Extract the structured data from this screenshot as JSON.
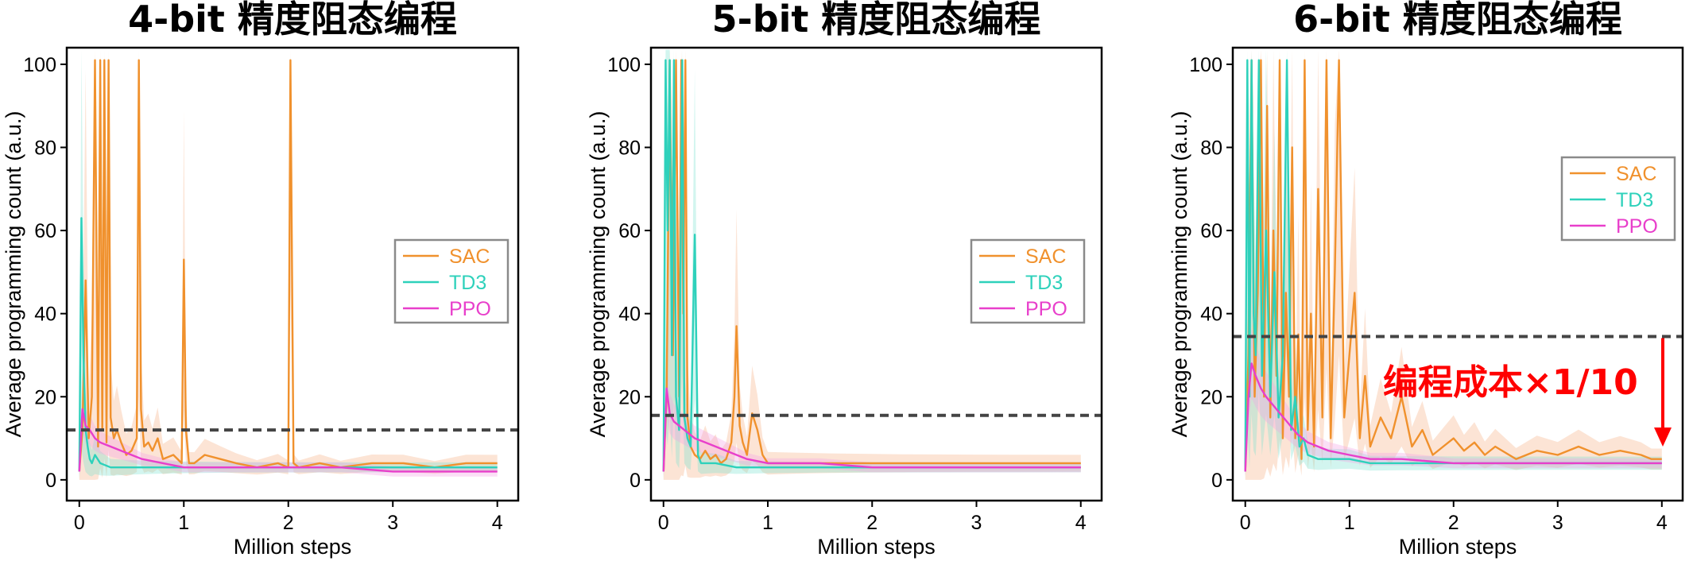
{
  "colors": {
    "SAC": "#f0912d",
    "TD3": "#2ed1bb",
    "PPO": "#e83fcb",
    "SAC_band": "#f6b186",
    "TD3_band": "#7fe3d2",
    "PPO_band": "#f3a3e6",
    "threshold": "#444444",
    "annotation": "#ff0000"
  },
  "chart_data": [
    {
      "type": "line",
      "title": "4-bit 精度阻态编程",
      "xlabel": "Million steps",
      "ylabel": "Average programming count (a.u.)",
      "xlim": [
        -0.12,
        4.2
      ],
      "ylim": [
        -5,
        104
      ],
      "xticks": [
        0,
        1,
        2,
        3,
        4
      ],
      "yticks": [
        0,
        20,
        40,
        60,
        80,
        100
      ],
      "threshold": 12,
      "legend_position": "center-right",
      "series": [
        {
          "name": "SAC",
          "x": [
            0,
            0.03,
            0.06,
            0.09,
            0.12,
            0.15,
            0.18,
            0.2,
            0.22,
            0.24,
            0.26,
            0.28,
            0.3,
            0.33,
            0.36,
            0.4,
            0.45,
            0.5,
            0.55,
            0.57,
            0.59,
            0.62,
            0.66,
            0.7,
            0.75,
            0.8,
            0.9,
            0.98,
            1.0,
            1.02,
            1.05,
            1.1,
            1.2,
            1.35,
            1.5,
            1.7,
            1.9,
            2.0,
            2.02,
            2.05,
            2.1,
            2.3,
            2.5,
            2.8,
            3.1,
            3.4,
            3.7,
            4.0
          ],
          "y": [
            2,
            12,
            48,
            10,
            20,
            101,
            8,
            101,
            12,
            101,
            9,
            101,
            15,
            10,
            12,
            9,
            6,
            7,
            10,
            101,
            17,
            8,
            9,
            7,
            10,
            5,
            6,
            4,
            53,
            12,
            4,
            4,
            6,
            5,
            4,
            3,
            4,
            3,
            101,
            4,
            3,
            4,
            3,
            4,
            4,
            3,
            4,
            4
          ]
        },
        {
          "name": "TD3",
          "x": [
            0,
            0.02,
            0.04,
            0.06,
            0.08,
            0.1,
            0.12,
            0.15,
            0.2,
            0.3,
            0.5,
            0.7,
            1.0,
            1.5,
            2.0,
            2.5,
            3.0,
            3.5,
            4.0
          ],
          "y": [
            2,
            63,
            30,
            12,
            8,
            5,
            4,
            6,
            4,
            3,
            3,
            3,
            3,
            3,
            3,
            3,
            3,
            3,
            3
          ]
        },
        {
          "name": "PPO",
          "x": [
            0,
            0.03,
            0.06,
            0.1,
            0.15,
            0.2,
            0.3,
            0.4,
            0.5,
            0.6,
            0.8,
            1.0,
            1.5,
            2.0,
            2.5,
            3.0,
            3.5,
            4.0
          ],
          "y": [
            2,
            17,
            13,
            12,
            10,
            9,
            8,
            7,
            6,
            5,
            4,
            3,
            3,
            3,
            3,
            2,
            2,
            2
          ]
        }
      ]
    },
    {
      "type": "line",
      "title": "5-bit 精度阻态编程",
      "xlabel": "Million steps",
      "ylabel": "Average programming count (a.u.)",
      "xlim": [
        -0.12,
        4.2
      ],
      "ylim": [
        -5,
        104
      ],
      "xticks": [
        0,
        1,
        2,
        3,
        4
      ],
      "yticks": [
        0,
        20,
        40,
        60,
        80,
        100
      ],
      "threshold": 15.5,
      "legend_position": "center-right",
      "series": [
        {
          "name": "SAC",
          "x": [
            0,
            0.03,
            0.06,
            0.09,
            0.12,
            0.15,
            0.17,
            0.19,
            0.21,
            0.23,
            0.26,
            0.3,
            0.35,
            0.4,
            0.45,
            0.5,
            0.55,
            0.6,
            0.65,
            0.68,
            0.7,
            0.73,
            0.76,
            0.8,
            0.85,
            0.9,
            0.95,
            1.0,
            1.1,
            1.3,
            1.6,
            2.0,
            2.3,
            2.6,
            3.0,
            3.5,
            4.0
          ],
          "y": [
            2,
            20,
            101,
            30,
            101,
            20,
            101,
            40,
            101,
            15,
            8,
            6,
            5,
            7,
            5,
            6,
            4,
            5,
            9,
            20,
            37,
            13,
            9,
            6,
            16,
            12,
            6,
            4,
            4,
            4,
            4,
            4,
            4,
            4,
            4,
            4,
            4
          ]
        },
        {
          "name": "TD3",
          "x": [
            0,
            0.02,
            0.04,
            0.06,
            0.08,
            0.1,
            0.12,
            0.15,
            0.18,
            0.2,
            0.23,
            0.26,
            0.3,
            0.33,
            0.36,
            0.4,
            0.5,
            0.7,
            1.0,
            1.5,
            2.0,
            3.0,
            4.0
          ],
          "y": [
            2,
            101,
            60,
            101,
            30,
            101,
            20,
            12,
            101,
            15,
            10,
            8,
            59,
            6,
            4,
            4,
            4,
            3,
            3,
            3,
            3,
            3,
            3
          ]
        },
        {
          "name": "PPO",
          "x": [
            0,
            0.03,
            0.06,
            0.1,
            0.2,
            0.3,
            0.4,
            0.5,
            0.6,
            0.8,
            1.0,
            1.5,
            2.0,
            2.5,
            3.0,
            3.5,
            4.0
          ],
          "y": [
            2,
            22,
            16,
            14,
            12,
            10,
            9,
            8,
            7,
            5,
            4,
            4,
            3,
            3,
            3,
            3,
            3
          ]
        }
      ]
    },
    {
      "type": "line",
      "title": "6-bit 精度阻态编程",
      "xlabel": "Million steps",
      "ylabel": "Average programming count (a.u.)",
      "xlim": [
        -0.12,
        4.2
      ],
      "ylim": [
        -5,
        104
      ],
      "xticks": [
        0,
        1,
        2,
        3,
        4
      ],
      "yticks": [
        0,
        20,
        40,
        60,
        80,
        100
      ],
      "threshold": 34.5,
      "legend_position": "upper-right",
      "annotation": "编程成本×1/10",
      "series": [
        {
          "name": "SAC",
          "x": [
            0,
            0.03,
            0.06,
            0.09,
            0.12,
            0.15,
            0.18,
            0.21,
            0.24,
            0.27,
            0.3,
            0.33,
            0.36,
            0.39,
            0.42,
            0.45,
            0.48,
            0.51,
            0.54,
            0.57,
            0.6,
            0.63,
            0.66,
            0.7,
            0.74,
            0.78,
            0.82,
            0.86,
            0.9,
            0.95,
            1.0,
            1.05,
            1.1,
            1.15,
            1.2,
            1.3,
            1.4,
            1.5,
            1.6,
            1.7,
            1.8,
            1.9,
            2.0,
            2.1,
            2.2,
            2.3,
            2.4,
            2.6,
            2.8,
            3.0,
            3.2,
            3.4,
            3.6,
            3.8,
            3.9,
            4.0
          ],
          "y": [
            2,
            30,
            101,
            20,
            45,
            101,
            20,
            90,
            15,
            60,
            25,
            101,
            10,
            45,
            20,
            80,
            10,
            35,
            5,
            101,
            12,
            40,
            8,
            70,
            15,
            101,
            10,
            50,
            101,
            15,
            30,
            45,
            10,
            25,
            8,
            15,
            10,
            20,
            8,
            12,
            6,
            8,
            10,
            7,
            9,
            6,
            8,
            5,
            7,
            6,
            8,
            6,
            7,
            6,
            5,
            5
          ]
        },
        {
          "name": "TD3",
          "x": [
            0,
            0.02,
            0.04,
            0.06,
            0.08,
            0.1,
            0.13,
            0.16,
            0.2,
            0.24,
            0.28,
            0.32,
            0.36,
            0.4,
            0.44,
            0.48,
            0.52,
            0.56,
            0.6,
            0.7,
            0.8,
            1.0,
            1.2,
            1.5,
            2.0,
            2.5,
            3.0,
            3.5,
            4.0
          ],
          "y": [
            2,
            101,
            20,
            101,
            40,
            30,
            101,
            25,
            60,
            20,
            50,
            15,
            30,
            101,
            12,
            20,
            8,
            10,
            6,
            5,
            5,
            5,
            4,
            4,
            4,
            4,
            4,
            4,
            4
          ]
        },
        {
          "name": "PPO",
          "x": [
            0,
            0.03,
            0.06,
            0.1,
            0.15,
            0.2,
            0.3,
            0.4,
            0.5,
            0.6,
            0.8,
            1.0,
            1.2,
            1.5,
            2.0,
            2.5,
            3.0,
            3.5,
            4.0
          ],
          "y": [
            2,
            20,
            28,
            25,
            22,
            20,
            17,
            14,
            11,
            9,
            7,
            6,
            5,
            5,
            4,
            4,
            4,
            4,
            4
          ]
        }
      ]
    }
  ]
}
